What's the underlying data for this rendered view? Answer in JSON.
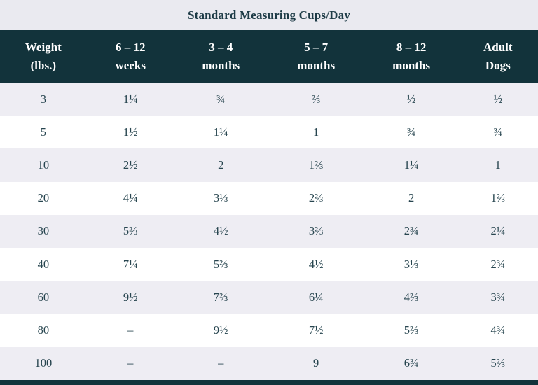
{
  "colors": {
    "header_bg": "#12333b",
    "header_text": "#ffffff",
    "title_band_bg": "#eaeaf0",
    "row_stripe_bg": "#eeedf3",
    "row_bg": "#ffffff",
    "cell_text": "#27454f",
    "title_text": "#1d3b46"
  },
  "chart_data": {
    "type": "table",
    "title": "Standard Measuring Cups/Day",
    "columns": [
      {
        "line1": "Weight",
        "line2": "(lbs.)"
      },
      {
        "line1": "6 – 12",
        "line2": "weeks"
      },
      {
        "line1": "3 – 4",
        "line2": "months"
      },
      {
        "line1": "5 – 7",
        "line2": "months"
      },
      {
        "line1": "8 – 12",
        "line2": "months"
      },
      {
        "line1": "Adult",
        "line2": "Dogs"
      }
    ],
    "col_widths_pct": [
      16.1,
      16.3,
      17.3,
      18.1,
      17.3,
      14.9
    ],
    "rows": [
      [
        "3",
        "1¼",
        "¾",
        "⅔",
        "½",
        "½"
      ],
      [
        "5",
        "1½",
        "1¼",
        "1",
        "¾",
        "¾"
      ],
      [
        "10",
        "2½",
        "2",
        "1⅔",
        "1¼",
        "1"
      ],
      [
        "20",
        "4¼",
        "3⅓",
        "2⅔",
        "2",
        "1⅔"
      ],
      [
        "30",
        "5⅔",
        "4½",
        "3⅔",
        "2¾",
        "2¼"
      ],
      [
        "40",
        "7¼",
        "5⅔",
        "4½",
        "3⅓",
        "2¾"
      ],
      [
        "60",
        "9½",
        "7⅔",
        "6¼",
        "4⅔",
        "3¾"
      ],
      [
        "80",
        "–",
        "9½",
        "7½",
        "5⅔",
        "4¾"
      ],
      [
        "100",
        "–",
        "–",
        "9",
        "6¾",
        "5⅔"
      ]
    ]
  }
}
